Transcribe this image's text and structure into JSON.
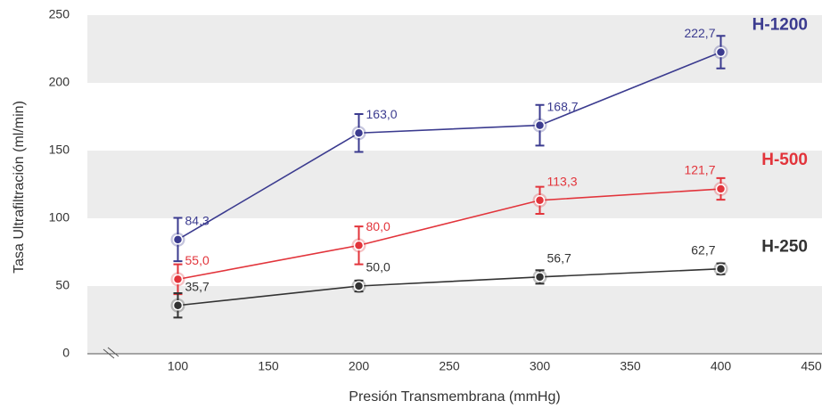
{
  "chart_data": {
    "type": "line",
    "x_label": "Presión Transmembrana (mmHg)",
    "y_label": "Tasa Ultrafiltración (ml/min)",
    "xlim": [
      50,
      450
    ],
    "xticks": [
      100,
      150,
      200,
      250,
      300,
      350,
      400,
      450
    ],
    "ylim": [
      0,
      250
    ],
    "yticks": [
      0,
      50,
      100,
      150,
      200,
      250
    ],
    "grid": "bands",
    "x": [
      100,
      200,
      300,
      400
    ],
    "series": [
      {
        "name": "H-1200",
        "color": "#3b3b8f",
        "values": [
          84.3,
          163.0,
          168.7,
          222.7
        ],
        "value_labels": [
          "84,3",
          "163,0",
          "168,7",
          "222,7"
        ],
        "errors": [
          16,
          14,
          15,
          12
        ]
      },
      {
        "name": "H-500",
        "color": "#e2343b",
        "values": [
          55.0,
          80.0,
          113.3,
          121.7
        ],
        "value_labels": [
          "55,0",
          "80,0",
          "113,3",
          "121,7"
        ],
        "errors": [
          11,
          14,
          10,
          8
        ]
      },
      {
        "name": "H-250",
        "color": "#333333",
        "values": [
          35.7,
          50.0,
          56.7,
          62.7
        ],
        "value_labels": [
          "35,7",
          "50,0",
          "56,7",
          "62,7"
        ],
        "errors": [
          9,
          4,
          5,
          4
        ]
      }
    ]
  }
}
